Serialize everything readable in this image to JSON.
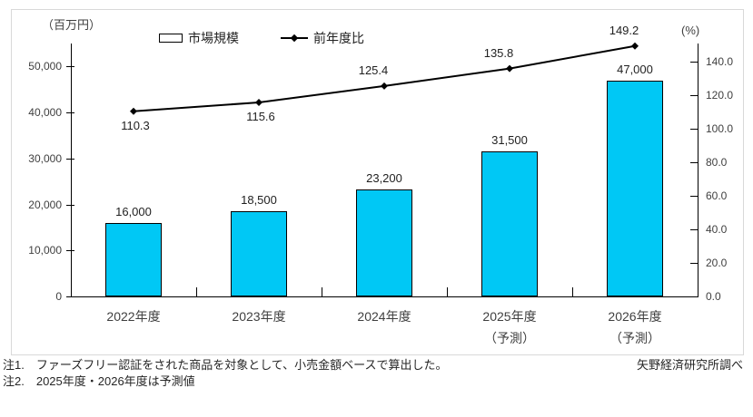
{
  "chart": {
    "left_unit": "（百万円）",
    "right_unit": "(%)",
    "legend": {
      "bar": "市場規模",
      "line": "前年度比"
    }
  },
  "colors": {
    "bar_fill": "#00C8F5",
    "bar_border": "#000000",
    "line": "#000000",
    "frame_border": "#D9D9D9",
    "tick_text": "#3F3F3F"
  },
  "chart_data": {
    "type": "bar",
    "subtype": "combo-bar-line-dual-axis",
    "title": "",
    "categories": [
      "2022年度",
      "2023年度",
      "2024年度",
      "2025年度（予測）",
      "2026年度（予測）"
    ],
    "category_lines": [
      [
        "2022年度"
      ],
      [
        "2023年度"
      ],
      [
        "2024年度"
      ],
      [
        "2025年度",
        "（予測）"
      ],
      [
        "2026年度",
        "（予測）"
      ]
    ],
    "series": [
      {
        "name": "市場規模",
        "chart": "bar",
        "axis": "left",
        "unit": "百万円",
        "values": [
          16000,
          18500,
          23200,
          31500,
          47000
        ],
        "labels": [
          "16,000",
          "18,500",
          "23,200",
          "31,500",
          "47,000"
        ]
      },
      {
        "name": "前年度比",
        "chart": "line",
        "axis": "right",
        "unit": "%",
        "values": [
          110.3,
          115.6,
          125.4,
          135.8,
          149.2
        ],
        "labels": [
          "110.3",
          "115.6",
          "125.4",
          "135.8",
          "149.2"
        ]
      }
    ],
    "label_positions": [
      "below",
      "below",
      "above",
      "above",
      "above"
    ],
    "left_axis": {
      "label": "（百万円）",
      "ticks": [
        "0",
        "10,000",
        "20,000",
        "30,000",
        "40,000",
        "50,000"
      ],
      "tick_values": [
        0,
        10000,
        20000,
        30000,
        40000,
        50000
      ],
      "range": [
        0,
        55000
      ]
    },
    "right_axis": {
      "label": "(%)",
      "ticks": [
        "0.0",
        "20.0",
        "40.0",
        "60.0",
        "80.0",
        "100.0",
        "120.0",
        "140.0"
      ],
      "tick_values": [
        0,
        20,
        40,
        60,
        80,
        100,
        120,
        140
      ],
      "range": [
        0,
        150.7
      ]
    },
    "grid": false,
    "legend_position": "top"
  },
  "notes": {
    "note1": "注1.　ファーズフリー認証をされた商品を対象として、小売金額ベースで算出した。",
    "note2": "注2.　2025年度・2026年度は予測値",
    "source": "矢野経済研究所調べ"
  }
}
